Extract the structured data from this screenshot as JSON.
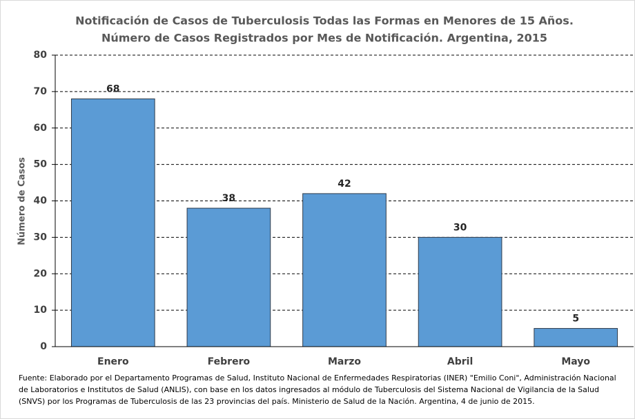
{
  "chart_data": {
    "type": "bar",
    "title": [
      "Notificación de Casos de Tuberculosis Todas las Formas en Menores de 15 Años.",
      "Número de Casos Registrados por Mes de Notificación. Argentina, 2015"
    ],
    "y_label": "Número de Casos",
    "categories": [
      "Enero",
      "Febrero",
      "Marzo",
      "Abril",
      "Mayo"
    ],
    "values": [
      68,
      38,
      42,
      30,
      5
    ],
    "color": "#5b9bd5",
    "ylim": [
      0,
      80
    ],
    "yticks": [
      0,
      10,
      20,
      30,
      40,
      50,
      60,
      70,
      80
    ],
    "grid": true,
    "note": "Fuente: Elaborado por el Departamento Programas de Salud, Instituto Nacional de Enfermedades Respiratorias (INER) \"Emilio Coni\", Administración Nacional de Laboratorios e Institutos de Salud (ANLIS), con base en los datos ingresados al módulo de Tuberculosis del Sistema Nacional de Vigilancia de la Salud (SNVS) por los Programas de Tuberculosis de las 23 provincias del país. Ministerio de Salud de la Nación. Argentina, 4 de junio de 2015."
  }
}
